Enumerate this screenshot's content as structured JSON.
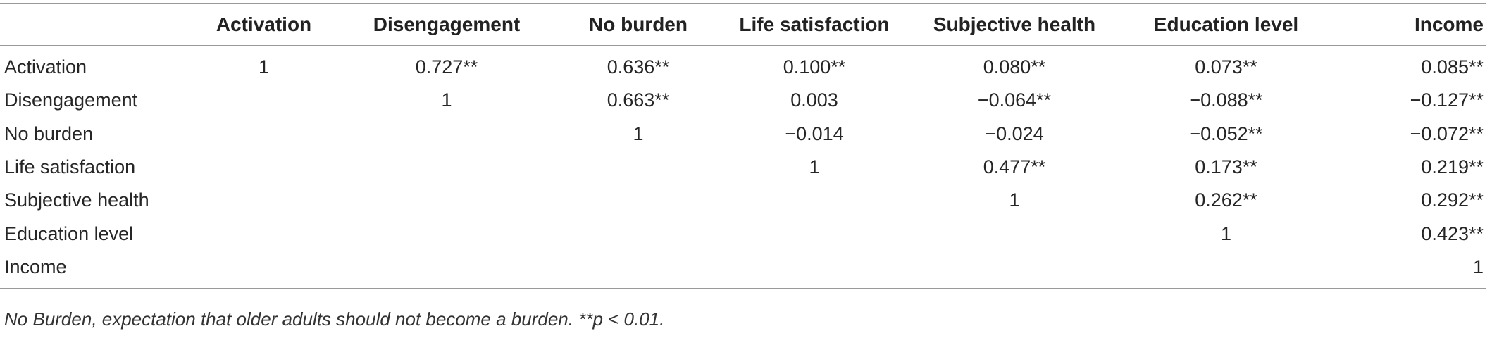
{
  "table": {
    "columns": [
      "",
      "Activation",
      "Disengagement",
      "No burden",
      "Life satisfaction",
      "Subjective health",
      "Education level",
      "Income"
    ],
    "rows": [
      [
        "Activation",
        "1",
        "0.727**",
        "0.636**",
        "0.100**",
        "0.080**",
        "0.073**",
        "0.085**"
      ],
      [
        "Disengagement",
        "",
        "1",
        "0.663**",
        "0.003",
        "−0.064**",
        "−0.088**",
        "−0.127**"
      ],
      [
        "No burden",
        "",
        "",
        "1",
        "−0.014",
        "−0.024",
        "−0.052**",
        "−0.072**"
      ],
      [
        "Life satisfaction",
        "",
        "",
        "",
        "1",
        "0.477**",
        "0.173**",
        "0.219**"
      ],
      [
        "Subjective health",
        "",
        "",
        "",
        "",
        "1",
        "0.262**",
        "0.292**"
      ],
      [
        "Education level",
        "",
        "",
        "",
        "",
        "",
        "1",
        "0.423**"
      ],
      [
        "Income",
        "",
        "",
        "",
        "",
        "",
        "",
        "1"
      ]
    ]
  },
  "footnote": "No Burden, expectation that older adults should not become a burden. **p < 0.01."
}
